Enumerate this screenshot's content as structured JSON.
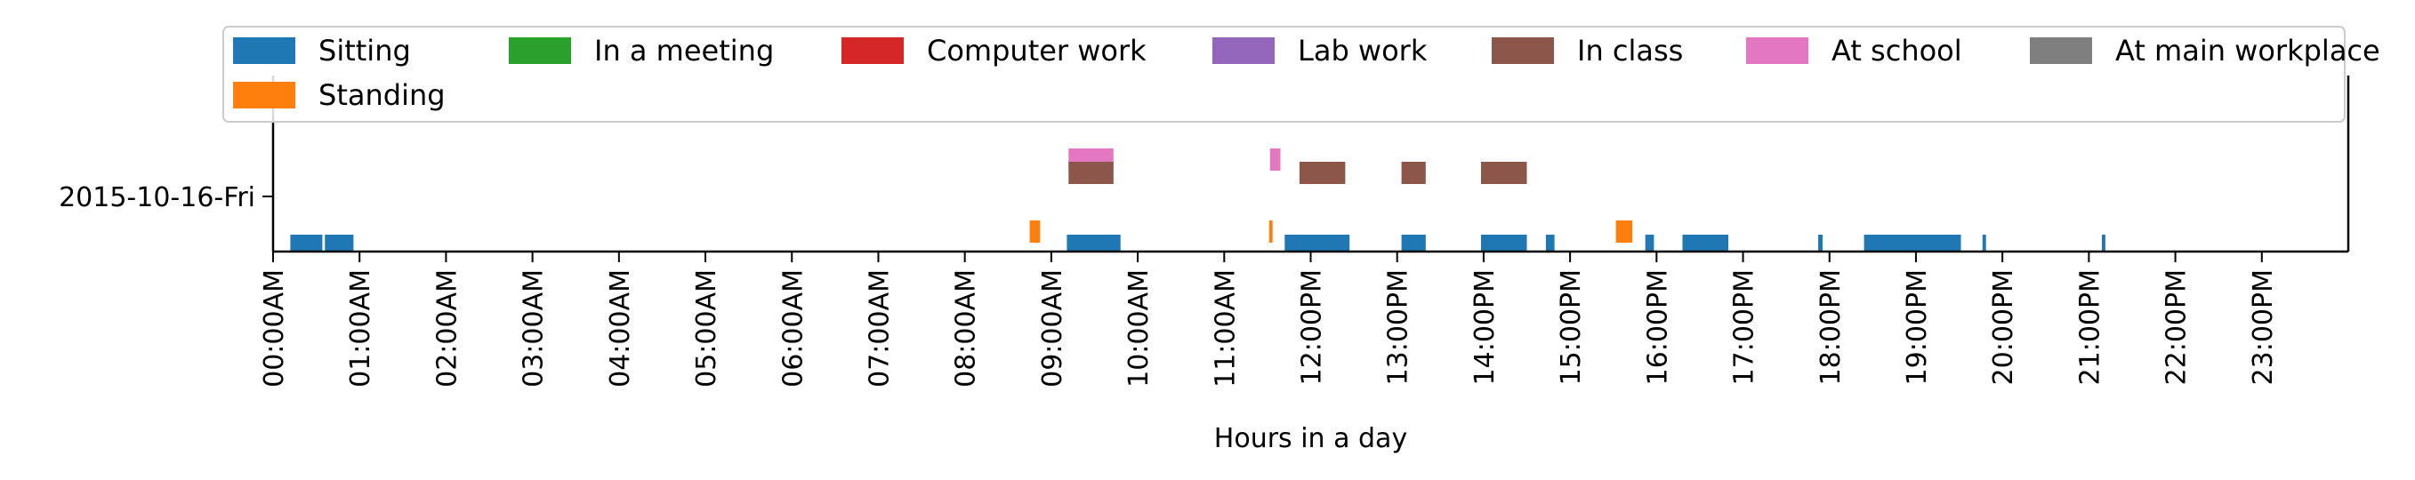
{
  "chart_data": {
    "type": "timeline",
    "xlabel": "Hours in a day",
    "ylabel": "",
    "y_categories": [
      "2015-10-16-Fri"
    ],
    "x_range_hours": [
      0,
      24
    ],
    "x_ticks": [
      "00:00AM",
      "01:00AM",
      "02:00AM",
      "03:00AM",
      "04:00AM",
      "05:00AM",
      "06:00AM",
      "07:00AM",
      "08:00AM",
      "09:00AM",
      "10:00AM",
      "11:00AM",
      "12:00PM",
      "13:00PM",
      "14:00PM",
      "15:00PM",
      "16:00PM",
      "17:00PM",
      "18:00PM",
      "19:00PM",
      "20:00PM",
      "21:00PM",
      "22:00PM",
      "23:00PM"
    ],
    "legend_position": "top",
    "legend": [
      {
        "label": "Sitting",
        "color": "#1f77b4"
      },
      {
        "label": "In a meeting",
        "color": "#2ca02c"
      },
      {
        "label": "Computer work",
        "color": "#d62728"
      },
      {
        "label": "Lab work",
        "color": "#9467bd"
      },
      {
        "label": "In class",
        "color": "#8c564b"
      },
      {
        "label": "At school",
        "color": "#e377c2"
      },
      {
        "label": "At main workplace",
        "color": "#7f7f7f"
      },
      {
        "label": "Standing",
        "color": "#ff7f0e"
      }
    ],
    "series": [
      {
        "name": "Sitting",
        "color": "#1f77b4",
        "intervals": [
          [
            0.2,
            0.57
          ],
          [
            0.6,
            0.93
          ],
          [
            9.18,
            9.8
          ],
          [
            11.7,
            12.45
          ],
          [
            13.05,
            13.33
          ],
          [
            13.97,
            14.5
          ],
          [
            14.72,
            14.82
          ],
          [
            15.87,
            15.97
          ],
          [
            16.3,
            16.83
          ],
          [
            17.87,
            17.92
          ],
          [
            18.4,
            19.52
          ],
          [
            19.77,
            19.81
          ],
          [
            21.15,
            21.19
          ]
        ]
      },
      {
        "name": "Standing",
        "color": "#ff7f0e",
        "intervals": [
          [
            8.75,
            8.87
          ],
          [
            11.52,
            11.56
          ],
          [
            15.53,
            15.72
          ]
        ]
      },
      {
        "name": "In class",
        "color": "#8c564b",
        "intervals": [
          [
            9.2,
            9.72
          ],
          [
            11.87,
            12.4
          ],
          [
            13.05,
            13.33
          ],
          [
            13.97,
            14.5
          ]
        ]
      },
      {
        "name": "At school",
        "color": "#e377c2",
        "intervals": [
          [
            9.2,
            9.72
          ],
          [
            11.53,
            11.65
          ]
        ]
      }
    ]
  }
}
